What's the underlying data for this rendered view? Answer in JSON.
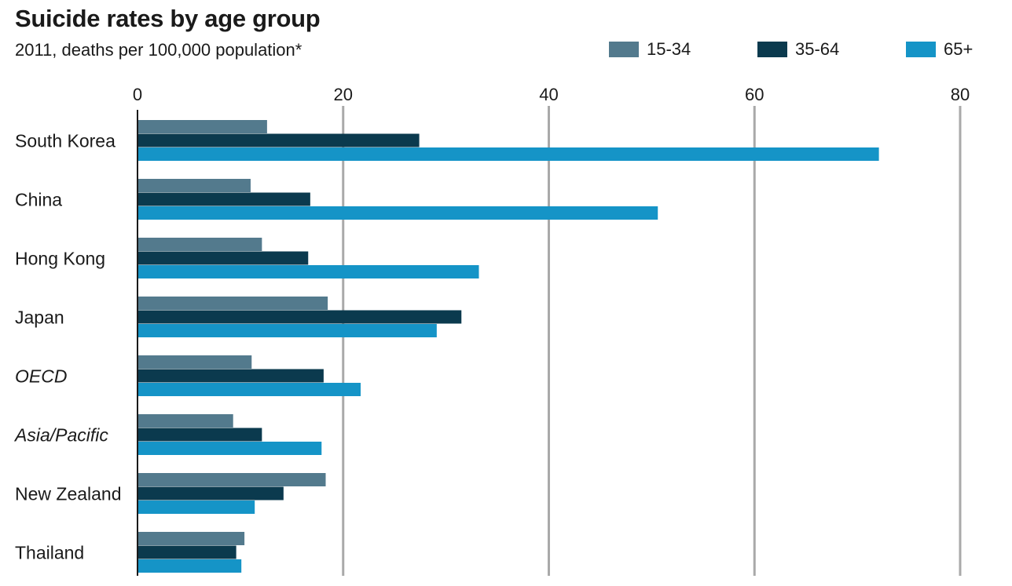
{
  "chart_data": {
    "type": "bar",
    "orientation": "horizontal",
    "title": "Suicide rates by age group",
    "subtitle": "2011, deaths per 100,000 population*",
    "xlim": [
      0,
      80
    ],
    "ticks": [
      0,
      20,
      40,
      60,
      80
    ],
    "grid": true,
    "legend_placement": "top-right",
    "categories": [
      "South Korea",
      "China",
      "Hong Kong",
      "Japan",
      "OECD",
      "Asia/Pacific",
      "New Zealand",
      "Thailand"
    ],
    "italic_categories": [
      "OECD",
      "Asia/Pacific"
    ],
    "series": [
      {
        "name": "15-34",
        "color": "#537a8d",
        "values": [
          12.6,
          11.0,
          12.1,
          18.5,
          11.1,
          9.3,
          18.3,
          10.4
        ]
      },
      {
        "name": "35-64",
        "color": "#0b3a4e",
        "values": [
          27.4,
          16.8,
          16.6,
          31.5,
          18.1,
          12.1,
          14.2,
          9.6
        ]
      },
      {
        "name": "65+",
        "color": "#1594c7",
        "values": [
          72.1,
          50.6,
          33.2,
          29.1,
          21.7,
          17.9,
          11.4,
          10.1
        ]
      }
    ]
  }
}
